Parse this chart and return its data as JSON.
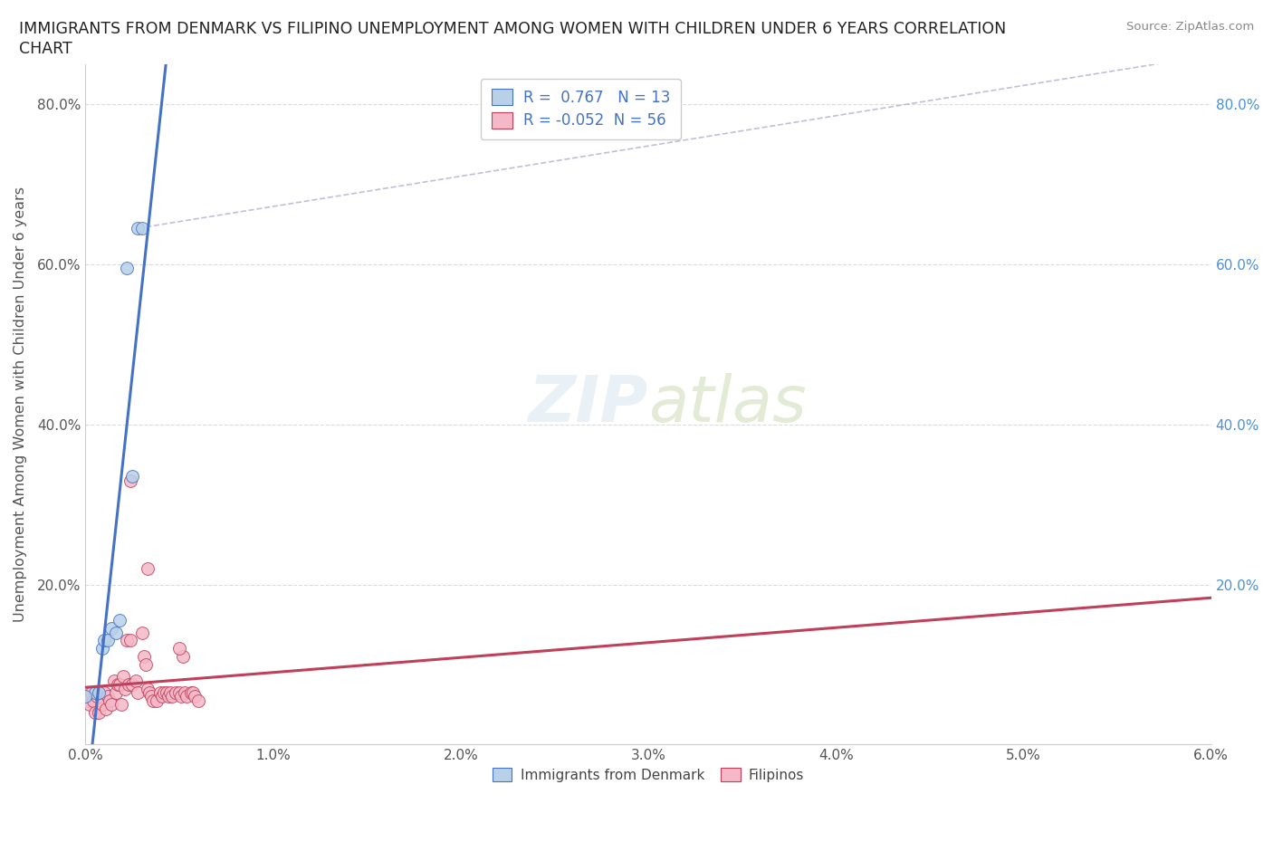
{
  "title_line1": "IMMIGRANTS FROM DENMARK VS FILIPINO UNEMPLOYMENT AMONG WOMEN WITH CHILDREN UNDER 6 YEARS CORRELATION",
  "title_line2": "CHART",
  "source": "Source: ZipAtlas.com",
  "ylabel": "Unemployment Among Women with Children Under 6 years",
  "watermark": "ZIPatlas",
  "xlim": [
    0.0,
    0.06
  ],
  "ylim": [
    0.0,
    0.85
  ],
  "xticks": [
    0.0,
    0.01,
    0.02,
    0.03,
    0.04,
    0.05,
    0.06
  ],
  "xticklabels": [
    "0.0%",
    "1.0%",
    "2.0%",
    "3.0%",
    "4.0%",
    "5.0%",
    "6.0%"
  ],
  "yticks": [
    0.0,
    0.2,
    0.4,
    0.6,
    0.8
  ],
  "yticklabels": [
    "",
    "20.0%",
    "40.0%",
    "60.0%",
    "80.0%"
  ],
  "denmark_R": 0.767,
  "denmark_N": 13,
  "filipino_R": -0.052,
  "filipino_N": 56,
  "denmark_color": "#b8d0e8",
  "danish_line_color": "#4472c4",
  "filipino_color": "#f4b8c8",
  "filipino_line_color": "#c0405a",
  "denmark_scatter": [
    [
      0.0005,
      0.065
    ],
    [
      0.0007,
      0.065
    ],
    [
      0.0009,
      0.12
    ],
    [
      0.001,
      0.13
    ],
    [
      0.0012,
      0.13
    ],
    [
      0.0014,
      0.145
    ],
    [
      0.0016,
      0.14
    ],
    [
      0.0018,
      0.155
    ],
    [
      0.0022,
      0.595
    ],
    [
      0.0025,
      0.335
    ],
    [
      0.0028,
      0.645
    ],
    [
      0.003,
      0.645
    ],
    [
      0.0,
      0.06
    ]
  ],
  "filipino_scatter": [
    [
      0.0,
      0.06
    ],
    [
      0.0001,
      0.055
    ],
    [
      0.0002,
      0.05
    ],
    [
      0.0003,
      0.065
    ],
    [
      0.0004,
      0.055
    ],
    [
      0.0005,
      0.04
    ],
    [
      0.0006,
      0.06
    ],
    [
      0.0007,
      0.04
    ],
    [
      0.0008,
      0.06
    ],
    [
      0.0009,
      0.05
    ],
    [
      0.001,
      0.065
    ],
    [
      0.0011,
      0.045
    ],
    [
      0.0012,
      0.06
    ],
    [
      0.0013,
      0.055
    ],
    [
      0.0014,
      0.05
    ],
    [
      0.0015,
      0.08
    ],
    [
      0.0016,
      0.065
    ],
    [
      0.0017,
      0.075
    ],
    [
      0.0018,
      0.075
    ],
    [
      0.0019,
      0.05
    ],
    [
      0.002,
      0.085
    ],
    [
      0.0021,
      0.07
    ],
    [
      0.0022,
      0.13
    ],
    [
      0.0023,
      0.075
    ],
    [
      0.0024,
      0.13
    ],
    [
      0.0025,
      0.075
    ],
    [
      0.0027,
      0.08
    ],
    [
      0.0028,
      0.065
    ],
    [
      0.003,
      0.14
    ],
    [
      0.0031,
      0.11
    ],
    [
      0.0032,
      0.1
    ],
    [
      0.0033,
      0.07
    ],
    [
      0.0034,
      0.065
    ],
    [
      0.0035,
      0.06
    ],
    [
      0.0036,
      0.055
    ],
    [
      0.0038,
      0.055
    ],
    [
      0.004,
      0.065
    ],
    [
      0.0041,
      0.06
    ],
    [
      0.0042,
      0.065
    ],
    [
      0.0043,
      0.065
    ],
    [
      0.0044,
      0.06
    ],
    [
      0.0045,
      0.065
    ],
    [
      0.0046,
      0.06
    ],
    [
      0.0048,
      0.065
    ],
    [
      0.005,
      0.065
    ],
    [
      0.0051,
      0.06
    ],
    [
      0.0052,
      0.11
    ],
    [
      0.0053,
      0.065
    ],
    [
      0.0054,
      0.06
    ],
    [
      0.0056,
      0.065
    ],
    [
      0.0057,
      0.065
    ],
    [
      0.0058,
      0.06
    ],
    [
      0.006,
      0.055
    ],
    [
      0.0024,
      0.33
    ],
    [
      0.0033,
      0.22
    ],
    [
      0.005,
      0.12
    ]
  ],
  "background_color": "#ffffff",
  "grid_color": "#cccccc",
  "right_ytick_color": "#4a90d9",
  "dash_line": [
    [
      0.0028,
      0.645
    ],
    [
      0.065,
      0.88
    ]
  ]
}
